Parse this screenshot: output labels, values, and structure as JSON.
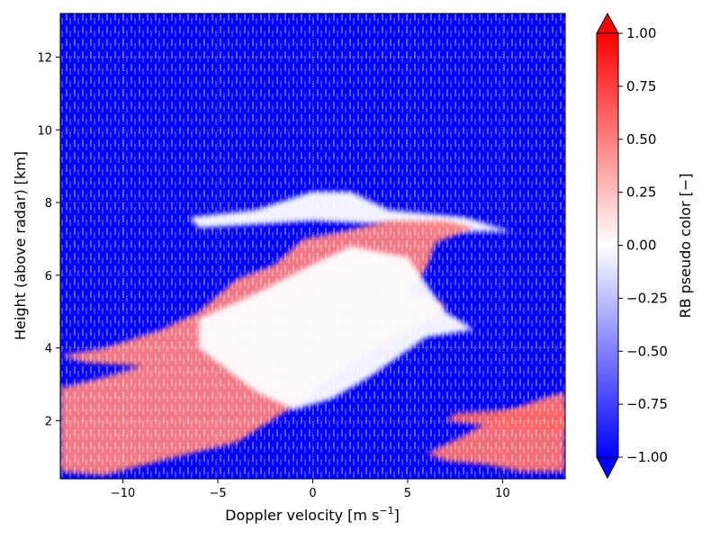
{
  "chart_data": {
    "type": "heatmap",
    "title": "",
    "xlabel_main": "Doppler velocity [m s",
    "xlabel_sup": "−1",
    "xlabel_end": "]",
    "ylabel": "Height (above radar) [km]",
    "xlim": [
      -13.3,
      13.3
    ],
    "ylim": [
      0.4,
      13.2
    ],
    "x_ticks": [
      -10,
      -5,
      0,
      5,
      10
    ],
    "x_tick_labels": [
      "−10",
      "−5",
      "0",
      "5",
      "10"
    ],
    "y_ticks": [
      2,
      4,
      6,
      8,
      10,
      12
    ],
    "y_tick_labels": [
      "2",
      "4",
      "6",
      "8",
      "10",
      "12"
    ],
    "grid": true,
    "colorbar": {
      "label": "RB pseudo color [−]",
      "range": [
        -1.0,
        1.0
      ],
      "ticks": [
        1.0,
        0.75,
        0.5,
        0.25,
        0.0,
        -0.25,
        -0.5,
        -0.75,
        -1.0
      ],
      "tick_labels": [
        "1.00",
        "0.75",
        "0.50",
        "0.25",
        "0.00",
        "−0.25",
        "−0.50",
        "−0.75",
        "−1.00"
      ],
      "extend": "both",
      "colors": {
        "low": "#0000ff",
        "mid": "#ffffff",
        "high": "#ff0000"
      }
    },
    "regions": [
      {
        "name": "upper-cloud-band",
        "value": 0.0,
        "polygon": [
          [
            -6.5,
            7.6
          ],
          [
            -3,
            7.8
          ],
          [
            0,
            8.3
          ],
          [
            2,
            8.3
          ],
          [
            4,
            7.8
          ],
          [
            8,
            7.6
          ],
          [
            10.5,
            7.2
          ],
          [
            8,
            7.2
          ],
          [
            4,
            7.4
          ],
          [
            0,
            7.5
          ],
          [
            -3,
            7.4
          ],
          [
            -6,
            7.3
          ]
        ]
      },
      {
        "name": "main-positive-band",
        "value": 0.5,
        "polygon": [
          [
            -13.3,
            2.9
          ],
          [
            -13.3,
            0.6
          ],
          [
            -11,
            0.5
          ],
          [
            -8,
            0.9
          ],
          [
            -4,
            1.4
          ],
          [
            -1,
            2.4
          ],
          [
            1.5,
            3.4
          ],
          [
            4,
            4.2
          ],
          [
            6.5,
            4.9
          ],
          [
            7,
            5.2
          ],
          [
            5,
            5.5
          ],
          [
            6,
            6.2
          ],
          [
            6.5,
            6.9
          ],
          [
            8.5,
            7.3
          ],
          [
            7,
            7.5
          ],
          [
            4,
            7.5
          ],
          [
            1.5,
            7.2
          ],
          [
            -0.5,
            7.0
          ],
          [
            -2,
            6.3
          ],
          [
            -4,
            5.9
          ],
          [
            -6,
            5.0
          ],
          [
            -8,
            4.5
          ],
          [
            -11,
            4.0
          ],
          [
            -13.3,
            3.8
          ],
          [
            -12,
            3.6
          ],
          [
            -9,
            3.5
          ],
          [
            -11,
            3.2
          ]
        ]
      },
      {
        "name": "lower-right-positive",
        "value": 0.55,
        "polygon": [
          [
            6,
            1.1
          ],
          [
            8,
            1.6
          ],
          [
            10,
            2.2
          ],
          [
            12,
            2.6
          ],
          [
            13.3,
            2.8
          ],
          [
            13.3,
            0.6
          ],
          [
            11,
            0.6
          ],
          [
            9,
            0.8
          ],
          [
            7,
            0.9
          ]
        ]
      },
      {
        "name": "right-positive-streak",
        "value": 0.6,
        "polygon": [
          [
            7,
            2.0
          ],
          [
            10,
            1.8
          ],
          [
            13.3,
            1.7
          ],
          [
            13.3,
            2.4
          ],
          [
            10,
            2.3
          ],
          [
            7.5,
            2.2
          ]
        ]
      },
      {
        "name": "mid-white-edge",
        "value": 0.0,
        "polygon": [
          [
            -6,
            4.8
          ],
          [
            -3,
            5.5
          ],
          [
            0,
            6.3
          ],
          [
            2,
            6.8
          ],
          [
            5,
            6.5
          ],
          [
            7,
            5.0
          ],
          [
            8.5,
            4.5
          ],
          [
            6,
            4.3
          ],
          [
            3,
            3.2
          ],
          [
            1,
            2.6
          ],
          [
            -1,
            2.3
          ],
          [
            -3,
            2.8
          ],
          [
            -6,
            4.0
          ]
        ]
      }
    ]
  }
}
